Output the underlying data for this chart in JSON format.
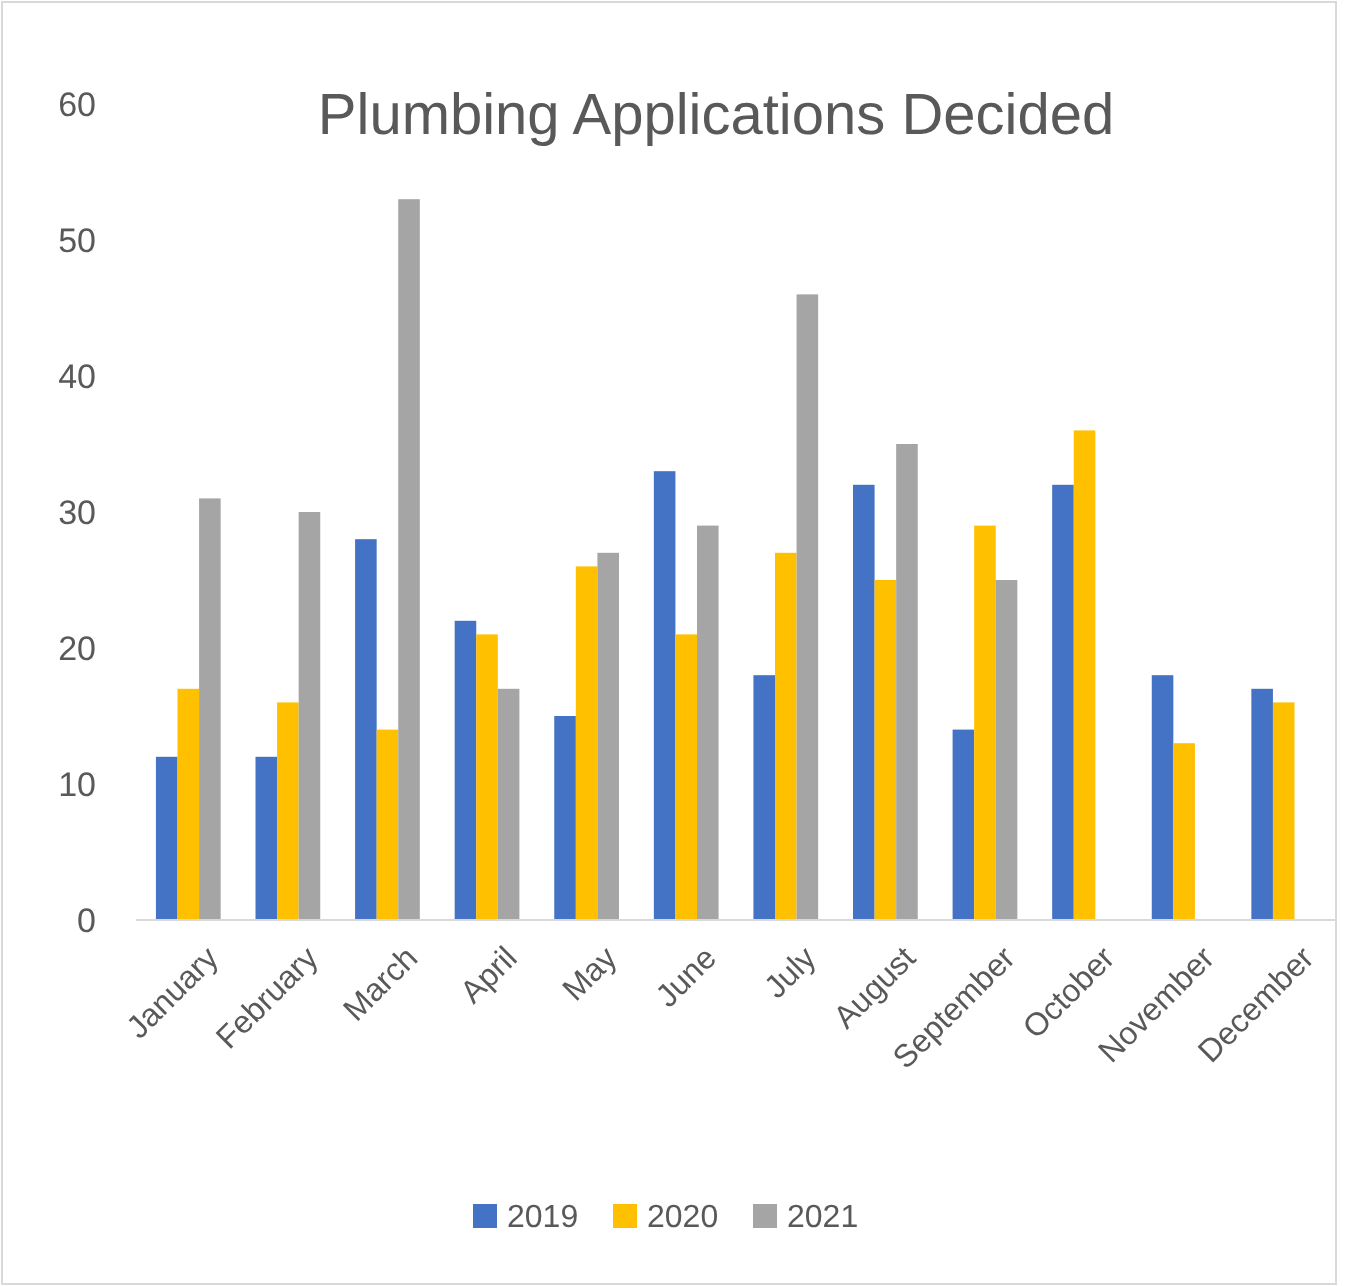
{
  "chart_data": {
    "type": "bar",
    "title": "Plumbing Applications Decided",
    "categories": [
      "January",
      "February",
      "March",
      "April",
      "May",
      "June",
      "July",
      "August",
      "September",
      "October",
      "November",
      "December"
    ],
    "series": [
      {
        "name": "2019",
        "color": "#4472c4",
        "values": [
          12,
          12,
          28,
          22,
          15,
          33,
          18,
          32,
          14,
          32,
          18,
          17
        ]
      },
      {
        "name": "2020",
        "color": "#ffc000",
        "values": [
          17,
          16,
          14,
          21,
          26,
          21,
          27,
          25,
          29,
          36,
          13,
          16
        ]
      },
      {
        "name": "2021",
        "color": "#a5a5a5",
        "values": [
          31,
          30,
          53,
          17,
          27,
          29,
          46,
          35,
          25,
          null,
          null,
          null
        ]
      }
    ],
    "ylim": [
      0,
      60
    ],
    "yticks": [
      0,
      10,
      20,
      30,
      40,
      50,
      60
    ],
    "grid": false,
    "legend": "bottom"
  }
}
